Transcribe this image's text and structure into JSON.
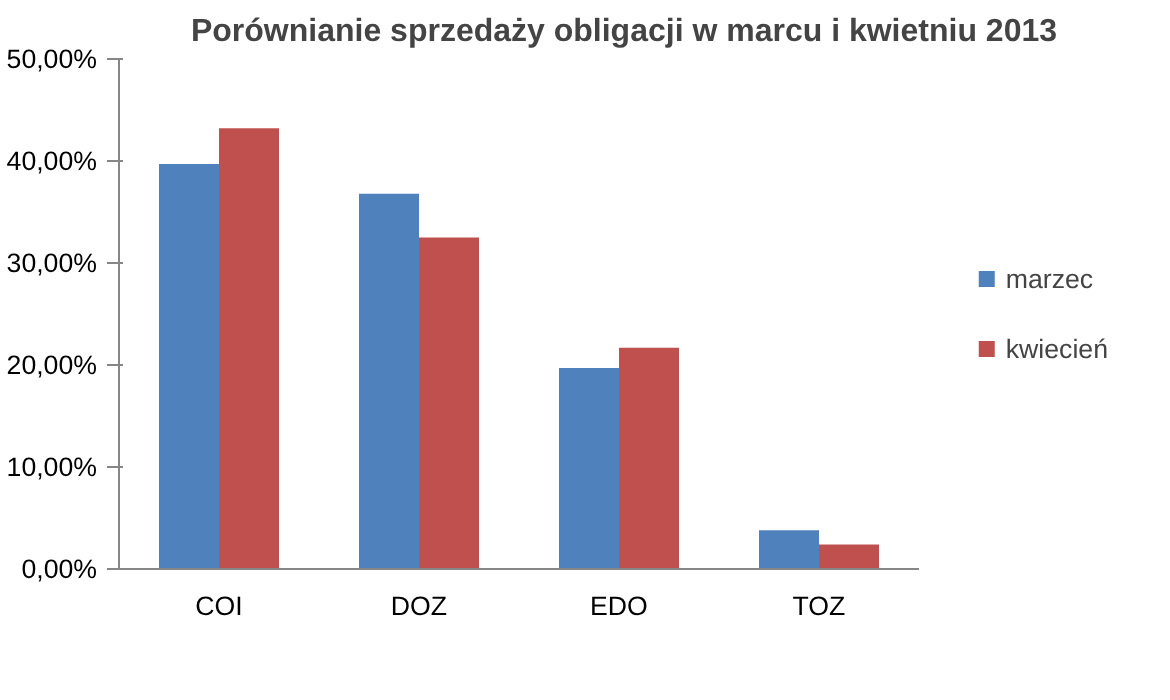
{
  "chart_data": {
    "type": "bar",
    "title": "Porównianie sprzedaży obligacji w marcu i kwietniu 2013",
    "categories": [
      "COI",
      "DOZ",
      "EDO",
      "TOZ"
    ],
    "series": [
      {
        "name": "marzec",
        "color": "#4f81bd",
        "values": [
          39.7,
          36.8,
          19.7,
          3.8
        ]
      },
      {
        "name": "kwiecień",
        "color": "#c0504d",
        "values": [
          43.2,
          32.5,
          21.7,
          2.4
        ]
      }
    ],
    "ylim": [
      0,
      50
    ],
    "yticks": [
      {
        "value": 0,
        "label": "0,00%"
      },
      {
        "value": 10,
        "label": "10,00%"
      },
      {
        "value": 20,
        "label": "20,00%"
      },
      {
        "value": 30,
        "label": "30,00%"
      },
      {
        "value": 40,
        "label": "40,00%"
      },
      {
        "value": 50,
        "label": "50,00%"
      }
    ],
    "legend": "right"
  }
}
